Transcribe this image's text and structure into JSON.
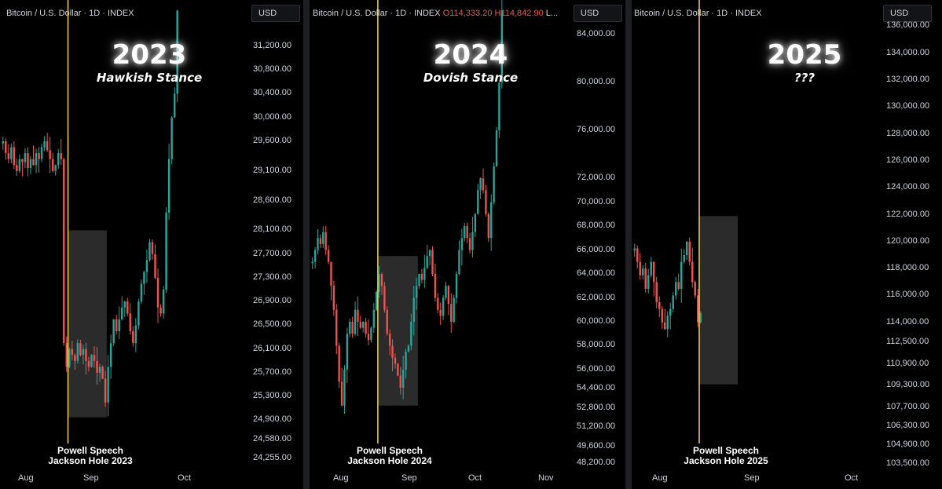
{
  "chart_data": [
    {
      "type": "candlestick",
      "legend": "Bitcoin / U.S. Dollar · 1D · INDEX",
      "currency": "USD",
      "title": "2023",
      "subtitle": "Hawkish Stance",
      "annotation": [
        "Powell Speech",
        "Jackson Hole 2023"
      ],
      "x_ticks": [
        "Aug",
        "Sep",
        "Oct"
      ],
      "y_ticks": [
        "31,200.00",
        "30,800.00",
        "30,400.00",
        "30,000.00",
        "29,600.00",
        "29,100.00",
        "28,600.00",
        "28,100.00",
        "27,700.00",
        "27,300.00",
        "26,900.00",
        "26,500.00",
        "26,100.00",
        "25,700.00",
        "25,300.00",
        "24,900.00",
        "24,580.00",
        "24,255.00"
      ],
      "ylim": [
        24100,
        31900
      ],
      "speech_day": 24,
      "highlight": {
        "day_start": 24,
        "day_end": 38,
        "low": 24950,
        "high": 28100
      },
      "close": [
        29600,
        29400,
        29300,
        29500,
        29200,
        29100,
        29300,
        29250,
        29400,
        29150,
        29300,
        29200,
        29400,
        29300,
        29500,
        29600,
        29450,
        29300,
        29100,
        29200,
        29400,
        29300,
        26200,
        25800,
        26100,
        26000,
        25900,
        26200,
        26000,
        26100,
        25900,
        25800,
        26000,
        25900,
        25700,
        25800,
        25600,
        25200,
        25800,
        26200,
        26600,
        26400,
        26600,
        26800,
        26900,
        26700,
        26400,
        26200,
        26500,
        26900,
        27200,
        27400,
        27600,
        27900,
        27700,
        27300,
        26800,
        26700,
        27100,
        28400,
        29300,
        30000,
        30400,
        31800
      ]
    },
    {
      "type": "candlestick",
      "legend": "Bitcoin / U.S. Dollar · 1D · INDEX",
      "ohlc_o": "O114,333.20",
      "ohlc_h": "H114,842.90",
      "ohlc_rest": "L...",
      "currency": "USD",
      "title": "2024",
      "subtitle": "Dovish Stance",
      "annotation": [
        "Powell Speech",
        "Jackson Hole 2024"
      ],
      "x_ticks": [
        "Aug",
        "Sep",
        "Oct",
        "Nov"
      ],
      "y_ticks": [
        "84,000.00",
        "80,000.00",
        "76,000.00",
        "72,000.00",
        "70,000.00",
        "68,000.00",
        "66,000.00",
        "64,000.00",
        "62,000.00",
        "60,000.00",
        "58,000.00",
        "56,000.00",
        "54,400.00",
        "52,800.00",
        "51,200.00",
        "49,600.00",
        "48,200.00"
      ],
      "ylim": [
        47800,
        86500
      ],
      "speech_day": 25,
      "highlight": {
        "day_start": 25,
        "day_end": 40,
        "low": 53000,
        "high": 65500
      },
      "close": [
        65000,
        66000,
        67000,
        66500,
        67500,
        66000,
        65000,
        63000,
        61000,
        58000,
        55000,
        53000,
        56000,
        59000,
        60000,
        59000,
        61000,
        60000,
        59500,
        60000,
        59000,
        58500,
        59500,
        61000,
        62500,
        64000,
        63000,
        61000,
        59000,
        58000,
        57000,
        56500,
        55500,
        54500,
        56000,
        57500,
        58000,
        60000,
        62000,
        63000,
        64000,
        63500,
        64500,
        65500,
        66000,
        64000,
        62000,
        61000,
        60500,
        62000,
        63000,
        61500,
        60000,
        62000,
        64000,
        66000,
        67000,
        68000,
        67000,
        66000,
        67500,
        69000,
        71000,
        72000,
        71000,
        69000,
        67000,
        70000,
        73000,
        76000,
        80000,
        86000
      ]
    },
    {
      "type": "candlestick",
      "legend": "Bitcoin / U.S. Dollar · 1D · INDEX",
      "currency": "USD",
      "title": "2025",
      "subtitle": "???",
      "annotation": [
        "Powell Speech",
        "Jackson Hole 2025"
      ],
      "x_ticks": [
        "Aug",
        "Sep",
        "Oct"
      ],
      "y_ticks": [
        "136,000.00",
        "134,000.00",
        "132,000.00",
        "130,000.00",
        "128,000.00",
        "126,000.00",
        "124,000.00",
        "122,000.00",
        "120,000.00",
        "118,000.00",
        "116,000.00",
        "114,000.00",
        "112,500.00",
        "110,900.00",
        "109,300.00",
        "107,700.00",
        "106,300.00",
        "104,900.00",
        "103,500.00"
      ],
      "ylim": [
        103200,
        137600
      ],
      "speech_day": 24,
      "highlight": {
        "day_start": 24,
        "day_end": 38,
        "low": 109400,
        "high": 121900
      },
      "close": [
        119500,
        118500,
        117500,
        118000,
        116500,
        117500,
        118500,
        117000,
        115500,
        115000,
        114000,
        113500,
        114500,
        115000,
        116000,
        117000,
        116500,
        118500,
        119000,
        120000,
        118500,
        117000,
        116000,
        114000,
        114700
      ]
    }
  ],
  "colors": {
    "up": "#26a69a",
    "down": "#ef5350",
    "speech_line": "#f0d44a",
    "highlight": "#3a3a3a"
  }
}
